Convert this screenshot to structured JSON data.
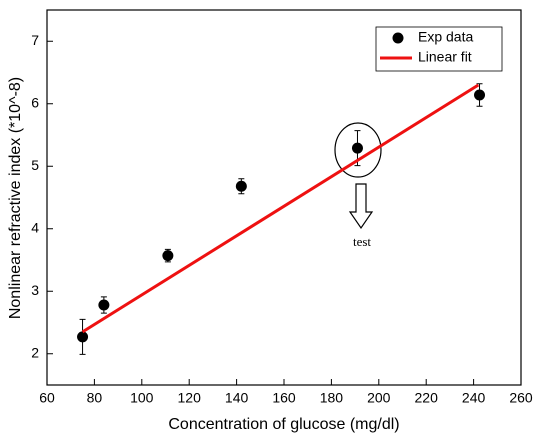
{
  "chart_data": {
    "type": "scatter",
    "x_label": "Concentration of glucose  (mg/dl)",
    "y_label": "Nonlinear refractive index (*10^-8)",
    "xlim": [
      60,
      260
    ],
    "xticks": [
      60,
      80,
      100,
      120,
      140,
      160,
      180,
      200,
      220,
      240,
      260
    ],
    "ylim": [
      1.5,
      7.5
    ],
    "yticks": [
      2,
      3,
      4,
      5,
      6,
      7
    ],
    "series": [
      {
        "name": "Exp data",
        "color": "#000000",
        "x": [
          75,
          84,
          111,
          142,
          191,
          242.5
        ],
        "values": [
          2.27,
          2.78,
          3.57,
          4.68,
          5.29,
          6.14
        ],
        "errors": [
          0.28,
          0.13,
          0.1,
          0.12,
          0.28,
          0.18
        ]
      },
      {
        "name": "Linear fit",
        "type": "line",
        "color": "#ee1111",
        "x": [
          75,
          242
        ],
        "values": [
          2.35,
          6.3
        ]
      }
    ],
    "annotation": "test"
  }
}
